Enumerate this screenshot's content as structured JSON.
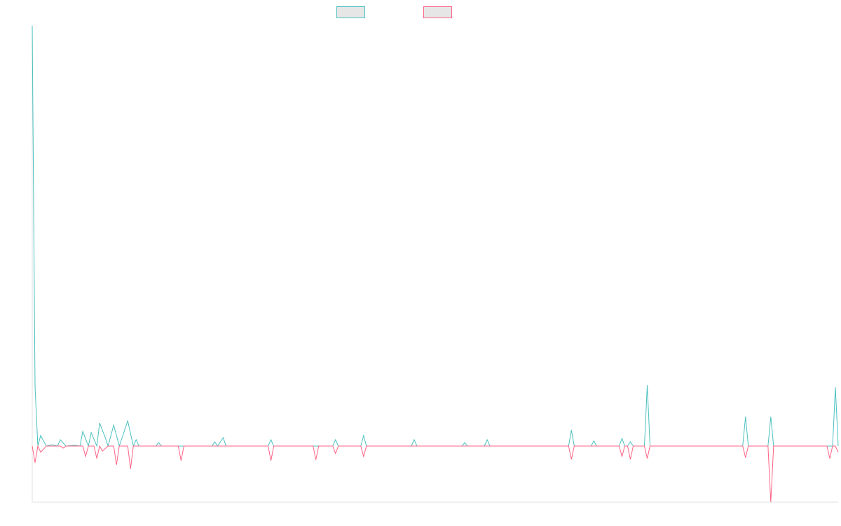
{
  "chart_data": {
    "type": "line",
    "title": "",
    "xlabel": "",
    "ylabel": "",
    "legend": {
      "placement": "top-center"
    },
    "grid": false,
    "ylim": [
      -0.135,
      1.0
    ],
    "x_count": 288,
    "series": [
      {
        "name": "",
        "color": "#4bc0c0",
        "fill": "#e6e6e6",
        "points": [
          [
            0,
            1.0
          ],
          [
            1,
            0.14
          ],
          [
            2,
            0.0
          ],
          [
            3,
            0.025
          ],
          [
            5,
            0.0
          ],
          [
            7,
            0.003
          ],
          [
            9,
            0.0
          ],
          [
            10,
            0.015
          ],
          [
            12,
            0.0
          ],
          [
            15,
            0.002
          ],
          [
            17,
            0.0
          ],
          [
            18,
            0.035
          ],
          [
            20,
            0.0
          ],
          [
            21,
            0.032
          ],
          [
            23,
            0.0
          ],
          [
            24,
            0.055
          ],
          [
            26,
            0.02
          ],
          [
            27,
            0.0
          ],
          [
            29,
            0.05
          ],
          [
            31,
            0.0
          ],
          [
            34,
            0.06
          ],
          [
            36,
            0.0
          ],
          [
            37,
            0.015
          ],
          [
            38,
            0.0
          ],
          [
            44,
            0.0
          ],
          [
            45,
            0.008
          ],
          [
            46,
            0.0
          ],
          [
            64,
            0.0
          ],
          [
            65,
            0.01
          ],
          [
            66,
            0.0
          ],
          [
            68,
            0.02
          ],
          [
            69,
            0.0
          ],
          [
            84,
            0.0
          ],
          [
            85,
            0.015
          ],
          [
            86,
            0.0
          ],
          [
            107,
            0.0
          ],
          [
            108,
            0.015
          ],
          [
            109,
            0.0
          ],
          [
            117,
            0.0
          ],
          [
            118,
            0.025
          ],
          [
            119,
            0.0
          ],
          [
            135,
            0.0
          ],
          [
            136,
            0.015
          ],
          [
            137,
            0.0
          ],
          [
            153,
            0.0
          ],
          [
            154,
            0.008
          ],
          [
            155,
            0.0
          ],
          [
            161,
            0.0
          ],
          [
            162,
            0.015
          ],
          [
            163,
            0.0
          ],
          [
            191,
            0.0
          ],
          [
            192,
            0.038
          ],
          [
            193,
            0.0
          ],
          [
            199,
            0.0
          ],
          [
            200,
            0.012
          ],
          [
            201,
            0.0
          ],
          [
            209,
            0.0
          ],
          [
            210,
            0.018
          ],
          [
            211,
            0.0
          ],
          [
            212,
            0.0
          ],
          [
            213,
            0.01
          ],
          [
            214,
            0.0
          ],
          [
            218,
            0.0
          ],
          [
            219,
            0.145
          ],
          [
            220,
            0.0
          ],
          [
            253,
            0.0
          ],
          [
            254,
            0.07
          ],
          [
            255,
            0.0
          ],
          [
            262,
            0.0
          ],
          [
            263,
            0.07
          ],
          [
            264,
            0.0
          ],
          [
            285,
            0.0
          ],
          [
            286,
            0.14
          ],
          [
            287,
            0.0
          ]
        ]
      },
      {
        "name": "",
        "color": "#ff6384",
        "fill": "#e6e6e6",
        "points": [
          [
            0,
            0.0
          ],
          [
            1,
            -0.04
          ],
          [
            2,
            0.0
          ],
          [
            3,
            -0.015
          ],
          [
            5,
            0.0
          ],
          [
            10,
            0.0
          ],
          [
            11,
            -0.005
          ],
          [
            12,
            0.0
          ],
          [
            18,
            0.0
          ],
          [
            19,
            -0.025
          ],
          [
            20,
            0.0
          ],
          [
            22,
            0.0
          ],
          [
            23,
            -0.03
          ],
          [
            24,
            0.0
          ],
          [
            25,
            -0.012
          ],
          [
            27,
            0.0
          ],
          [
            29,
            0.0
          ],
          [
            30,
            -0.045
          ],
          [
            31,
            0.0
          ],
          [
            34,
            0.0
          ],
          [
            35,
            -0.055
          ],
          [
            36,
            0.0
          ],
          [
            52,
            0.0
          ],
          [
            53,
            -0.035
          ],
          [
            54,
            0.0
          ],
          [
            84,
            0.0
          ],
          [
            85,
            -0.035
          ],
          [
            86,
            0.0
          ],
          [
            100,
            0.0
          ],
          [
            101,
            -0.033
          ],
          [
            102,
            0.0
          ],
          [
            107,
            0.0
          ],
          [
            108,
            -0.018
          ],
          [
            109,
            0.0
          ],
          [
            117,
            0.0
          ],
          [
            118,
            -0.025
          ],
          [
            119,
            0.0
          ],
          [
            191,
            0.0
          ],
          [
            192,
            -0.032
          ],
          [
            193,
            0.0
          ],
          [
            209,
            0.0
          ],
          [
            210,
            -0.025
          ],
          [
            211,
            0.0
          ],
          [
            212,
            0.0
          ],
          [
            213,
            -0.032
          ],
          [
            214,
            0.0
          ],
          [
            218,
            0.0
          ],
          [
            219,
            -0.03
          ],
          [
            220,
            0.0
          ],
          [
            253,
            0.0
          ],
          [
            254,
            -0.028
          ],
          [
            255,
            0.0
          ],
          [
            262,
            0.0
          ],
          [
            263,
            -0.135
          ],
          [
            264,
            0.0
          ],
          [
            283,
            0.0
          ],
          [
            284,
            -0.03
          ],
          [
            285,
            0.0
          ],
          [
            286,
            0.0
          ],
          [
            287,
            -0.015
          ]
        ]
      }
    ]
  }
}
